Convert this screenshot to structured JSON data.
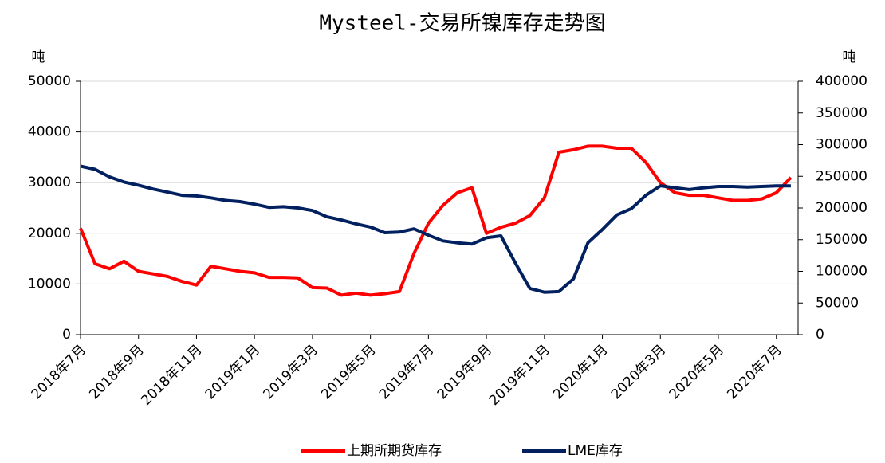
{
  "chart_data": {
    "type": "line",
    "title": "Mysteel-交易所镍库存走势图",
    "y_label": "吨",
    "y2_label": "吨",
    "categories": [
      "2018年7月",
      null,
      null,
      null,
      "2018年9月",
      null,
      null,
      null,
      "2018年11月",
      null,
      null,
      null,
      "2019年1月",
      null,
      null,
      null,
      "2019年3月",
      null,
      null,
      null,
      "2019年5月",
      null,
      null,
      null,
      "2019年7月",
      null,
      null,
      null,
      "2019年9月",
      null,
      null,
      null,
      "2019年11月",
      null,
      null,
      null,
      "2020年1月",
      null,
      null,
      null,
      "2020年3月",
      null,
      null,
      null,
      "2020年5月",
      null,
      null,
      null,
      "2020年7月",
      null
    ],
    "series": [
      {
        "name": "上期所期货库存",
        "color": "#ff0000",
        "axis": "y",
        "values": [
          21000,
          14000,
          13000,
          14500,
          12500,
          12000,
          11500,
          10500,
          9800,
          13500,
          13000,
          12500,
          12200,
          11300,
          11300,
          11200,
          9300,
          9200,
          7800,
          8200,
          7800,
          8100,
          8500,
          16000,
          22000,
          25500,
          28000,
          29000,
          20000,
          21200,
          22000,
          23500,
          27000,
          36000,
          36500,
          37200,
          37200,
          36800,
          36800,
          34000,
          30000,
          28000,
          27500,
          27500,
          27000,
          26500,
          26500,
          26800,
          28000,
          31000
        ]
      },
      {
        "name": "LME库存",
        "color": "#002060",
        "axis": "y2",
        "values": [
          266000,
          261000,
          249000,
          241000,
          236000,
          230000,
          225000,
          220000,
          219000,
          216000,
          212000,
          210000,
          206000,
          201000,
          202000,
          200000,
          196000,
          186000,
          181000,
          175000,
          170000,
          161000,
          162000,
          167000,
          157000,
          148000,
          145000,
          143000,
          153000,
          156000,
          113000,
          73000,
          67000,
          68000,
          88000,
          145000,
          166000,
          189000,
          199000,
          220000,
          235000,
          232000,
          229000,
          232000,
          234000,
          234000,
          233000,
          234000,
          235000,
          235000
        ]
      }
    ],
    "ylim": [
      0,
      50000
    ],
    "yticks": [
      0,
      10000,
      20000,
      30000,
      40000,
      50000
    ],
    "y2lim": [
      0,
      400000
    ],
    "y2ticks": [
      0,
      50000,
      100000,
      150000,
      200000,
      250000,
      300000,
      350000,
      400000
    ],
    "grid": true,
    "legend": "bottom"
  }
}
